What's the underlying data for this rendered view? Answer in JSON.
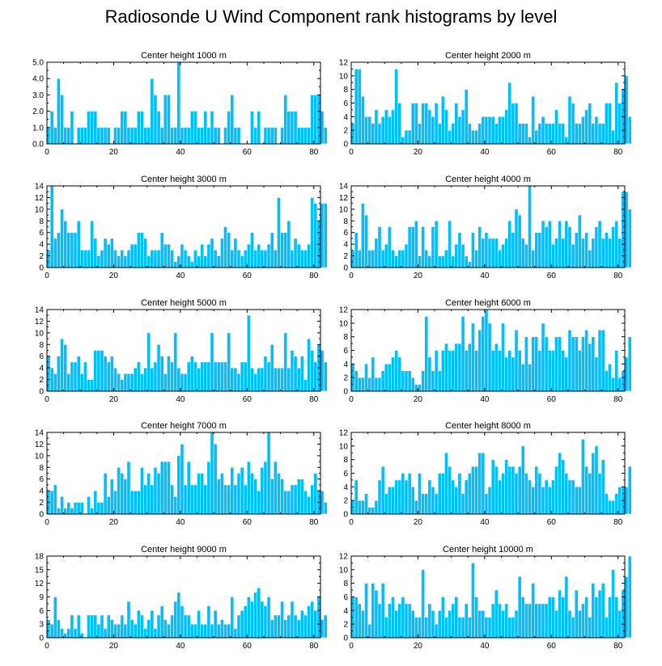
{
  "title": "Radiosonde U Wind Component rank histograms by level",
  "colors": {
    "bar": "#00bfff",
    "bar_edge": "#ffffff",
    "axis": "#000000"
  },
  "chart_data": [
    {
      "type": "bar",
      "title": "Center height 1000 m",
      "xlim": [
        0,
        82
      ],
      "ylim": [
        0,
        5
      ],
      "xticks": [
        0,
        20,
        40,
        60,
        80
      ],
      "yticks": [
        "0.0",
        "1.0",
        "2.0",
        "3.0",
        "4.0",
        "5.0"
      ],
      "values": [
        1,
        2,
        1,
        4,
        3,
        1,
        1,
        2,
        0,
        1,
        1,
        1,
        2,
        2,
        2,
        1,
        1,
        1,
        1,
        0,
        1,
        1,
        2,
        2,
        1,
        1,
        1,
        2,
        2,
        1,
        1,
        4,
        3,
        2,
        1,
        3,
        3,
        1,
        1,
        5,
        1,
        1,
        1,
        2,
        2,
        1,
        1,
        2,
        1,
        2,
        1,
        1,
        0,
        1,
        2,
        3,
        1,
        1,
        0,
        0,
        0,
        2,
        1,
        2,
        0,
        1,
        1,
        1,
        1,
        0,
        1,
        3,
        2,
        2,
        2,
        1,
        1,
        1,
        1,
        3,
        3,
        3,
        2,
        1
      ]
    },
    {
      "type": "bar",
      "title": "Center height 2000 m",
      "xlim": [
        0,
        82
      ],
      "ylim": [
        0,
        12
      ],
      "xticks": [
        0,
        20,
        40,
        60,
        80
      ],
      "yticks": [
        "0",
        "2",
        "4",
        "6",
        "8",
        "10",
        "12"
      ],
      "values": [
        3,
        11,
        11,
        7,
        4,
        4,
        3,
        5,
        3,
        4,
        5,
        4,
        5,
        11,
        6,
        1,
        2,
        2,
        6,
        6,
        3,
        6,
        6,
        5,
        4,
        6,
        3,
        7,
        5,
        2,
        3,
        6,
        4,
        5,
        8,
        3,
        2,
        2,
        3,
        4,
        4,
        4,
        4,
        3,
        4,
        4,
        5,
        9,
        6,
        6,
        3,
        3,
        3,
        1,
        7,
        2,
        3,
        4,
        3,
        3,
        3,
        5,
        3,
        3,
        1,
        7,
        6,
        3,
        3,
        4,
        5,
        6,
        3,
        4,
        3,
        3,
        6,
        6,
        2,
        9,
        6,
        8,
        10,
        4
      ]
    },
    {
      "type": "bar",
      "title": "Center height 3000 m",
      "xlim": [
        0,
        82
      ],
      "ylim": [
        0,
        14
      ],
      "xticks": [
        0,
        20,
        40,
        60,
        80
      ],
      "yticks": [
        "0",
        "2",
        "4",
        "6",
        "8",
        "10",
        "12",
        "14"
      ],
      "values": [
        3,
        14,
        5,
        6,
        10,
        8,
        6,
        6,
        6,
        8,
        3,
        3,
        3,
        8,
        5,
        2,
        3,
        5,
        4,
        5,
        3,
        2,
        3,
        2,
        3,
        4,
        4,
        6,
        6,
        5,
        2,
        3,
        3,
        3,
        6,
        4,
        4,
        3,
        1,
        2,
        4,
        3,
        2,
        1,
        3,
        2,
        4,
        2,
        4,
        5,
        3,
        2,
        5,
        7,
        6,
        3,
        5,
        3,
        2,
        3,
        4,
        6,
        3,
        4,
        3,
        3,
        4,
        6,
        3,
        12,
        6,
        6,
        8,
        3,
        5,
        4,
        3,
        3,
        4,
        12,
        11,
        8,
        11,
        11
      ]
    },
    {
      "type": "bar",
      "title": "Center height 4000 m",
      "xlim": [
        0,
        82
      ],
      "ylim": [
        0,
        14
      ],
      "xticks": [
        0,
        20,
        40,
        60,
        80
      ],
      "yticks": [
        "0",
        "2",
        "4",
        "6",
        "8",
        "10",
        "12",
        "14"
      ],
      "values": [
        3,
        6,
        3,
        11,
        9,
        3,
        3,
        5,
        7,
        3,
        4,
        7,
        3,
        2,
        3,
        3,
        4,
        7,
        7,
        8,
        2,
        7,
        3,
        2,
        7,
        8,
        2,
        2,
        3,
        8,
        2,
        4,
        6,
        4,
        2,
        1,
        6,
        3,
        7,
        5,
        6,
        5,
        5,
        5,
        3,
        4,
        5,
        8,
        6,
        10,
        9,
        5,
        4,
        14,
        3,
        6,
        6,
        8,
        7,
        8,
        4,
        5,
        8,
        5,
        8,
        7,
        4,
        6,
        9,
        5,
        6,
        3,
        5,
        7,
        8,
        5,
        6,
        5,
        7,
        8,
        5,
        13,
        13,
        10
      ]
    },
    {
      "type": "bar",
      "title": "Center height 5000 m",
      "xlim": [
        0,
        82
      ],
      "ylim": [
        0,
        14
      ],
      "xticks": [
        0,
        20,
        40,
        60,
        80
      ],
      "yticks": [
        "0",
        "2",
        "4",
        "6",
        "8",
        "10",
        "12",
        "14"
      ],
      "values": [
        6,
        4,
        3,
        6,
        9,
        8,
        3,
        5,
        5,
        6,
        3,
        5,
        2,
        2,
        7,
        7,
        7,
        6,
        5,
        6,
        4,
        3,
        2,
        3,
        3,
        3,
        4,
        5,
        3,
        4,
        10,
        4,
        5,
        8,
        6,
        3,
        6,
        5,
        10,
        4,
        3,
        3,
        5,
        6,
        5,
        4,
        5,
        5,
        5,
        10,
        5,
        5,
        5,
        5,
        10,
        4,
        4,
        3,
        5,
        5,
        13,
        4,
        3,
        4,
        4,
        6,
        5,
        8,
        4,
        4,
        4,
        10,
        4,
        7,
        6,
        4,
        6,
        2,
        9,
        7,
        5,
        8,
        7,
        5
      ]
    },
    {
      "type": "bar",
      "title": "Center height 6000 m",
      "xlim": [
        0,
        82
      ],
      "ylim": [
        0,
        12
      ],
      "xticks": [
        0,
        20,
        40,
        60,
        80
      ],
      "yticks": [
        "0",
        "2",
        "4",
        "6",
        "8",
        "10",
        "12"
      ],
      "values": [
        4,
        3,
        2,
        2,
        4,
        2,
        5,
        2,
        2,
        3,
        4,
        4,
        5,
        6,
        5,
        3,
        3,
        3,
        2,
        1,
        1,
        3,
        11,
        5,
        3,
        6,
        3,
        6,
        7,
        6,
        6,
        7,
        7,
        11,
        6,
        7,
        10,
        6,
        9,
        11,
        12,
        10,
        6,
        7,
        6,
        10,
        5,
        6,
        5,
        9,
        6,
        4,
        8,
        4,
        8,
        8,
        6,
        10,
        8,
        6,
        6,
        8,
        8,
        6,
        5,
        9,
        8,
        8,
        6,
        8,
        9,
        7,
        8,
        5,
        9,
        9,
        3,
        4,
        2,
        6,
        2,
        3,
        5,
        8
      ]
    },
    {
      "type": "bar",
      "title": "Center height 7000 m",
      "xlim": [
        0,
        82
      ],
      "ylim": [
        0,
        14
      ],
      "xticks": [
        0,
        20,
        40,
        60,
        80
      ],
      "yticks": [
        "0",
        "2",
        "4",
        "6",
        "8",
        "10",
        "12",
        "14"
      ],
      "values": [
        4,
        4,
        5,
        1,
        3,
        1,
        2,
        1,
        2,
        2,
        2,
        0,
        3,
        1,
        4,
        2,
        2,
        7,
        3,
        6,
        4,
        8,
        7,
        6,
        9,
        4,
        4,
        4,
        8,
        5,
        7,
        5,
        8,
        7,
        9,
        9,
        9,
        5,
        3,
        10,
        12,
        5,
        9,
        5,
        5,
        7,
        7,
        5,
        9,
        14,
        12,
        6,
        7,
        5,
        5,
        8,
        5,
        7,
        8,
        5,
        9,
        7,
        6,
        4,
        8,
        9,
        14,
        6,
        9,
        7,
        6,
        4,
        4,
        5,
        5,
        6,
        6,
        4,
        3,
        5,
        7,
        4,
        4,
        2
      ]
    },
    {
      "type": "bar",
      "title": "Center height 8000 m",
      "xlim": [
        0,
        82
      ],
      "ylim": [
        0,
        12
      ],
      "xticks": [
        0,
        20,
        40,
        60,
        80
      ],
      "yticks": [
        "0",
        "2",
        "4",
        "6",
        "8",
        "10",
        "12"
      ],
      "values": [
        2,
        5,
        2,
        2,
        3,
        1,
        1,
        2,
        5,
        7,
        3,
        4,
        4,
        5,
        5,
        6,
        5,
        6,
        4,
        2,
        6,
        3,
        3,
        5,
        4,
        3,
        6,
        6,
        9,
        7,
        5,
        4,
        6,
        3,
        5,
        6,
        7,
        7,
        9,
        9,
        3,
        4,
        8,
        7,
        5,
        6,
        8,
        7,
        7,
        6,
        7,
        10,
        6,
        5,
        4,
        7,
        6,
        4,
        5,
        4,
        5,
        7,
        9,
        8,
        6,
        5,
        5,
        4,
        4,
        11,
        7,
        6,
        9,
        10,
        6,
        8,
        3,
        2,
        2,
        3,
        4,
        4,
        4,
        7
      ]
    },
    {
      "type": "bar",
      "title": "Center height 9000 m",
      "xlim": [
        0,
        82
      ],
      "ylim": [
        0,
        18
      ],
      "xticks": [
        0,
        20,
        40,
        60,
        80
      ],
      "yticks": [
        "0",
        "3",
        "6",
        "9",
        "12",
        "15",
        "18"
      ],
      "values": [
        4,
        3,
        9,
        4,
        2,
        1,
        2,
        5,
        2,
        5,
        1,
        0,
        5,
        5,
        5,
        3,
        5,
        2,
        5,
        4,
        3,
        3,
        5,
        3,
        8,
        4,
        3,
        6,
        5,
        2,
        4,
        6,
        2,
        5,
        7,
        4,
        3,
        5,
        8,
        10,
        7,
        5,
        5,
        3,
        3,
        6,
        3,
        3,
        7,
        3,
        6,
        3,
        4,
        3,
        3,
        9,
        2,
        5,
        6,
        7,
        9,
        8,
        10,
        11,
        8,
        7,
        9,
        4,
        5,
        5,
        8,
        4,
        5,
        8,
        5,
        4,
        6,
        5,
        7,
        8,
        6,
        9,
        4,
        5
      ]
    },
    {
      "type": "bar",
      "title": "Center height 10000 m",
      "xlim": [
        0,
        82
      ],
      "ylim": [
        0,
        12
      ],
      "xticks": [
        0,
        20,
        40,
        60,
        80
      ],
      "yticks": [
        "0",
        "2",
        "4",
        "6",
        "8",
        "10",
        "12"
      ],
      "values": [
        6,
        6,
        5,
        4,
        8,
        2,
        8,
        7,
        5,
        8,
        3,
        5,
        6,
        4,
        5,
        6,
        5,
        5,
        4,
        3,
        3,
        10,
        3,
        5,
        4,
        2,
        4,
        6,
        3,
        4,
        5,
        6,
        3,
        3,
        5,
        3,
        11,
        6,
        4,
        4,
        3,
        3,
        5,
        7,
        5,
        4,
        5,
        3,
        3,
        4,
        9,
        6,
        5,
        5,
        8,
        5,
        5,
        5,
        5,
        6,
        6,
        4,
        7,
        6,
        9,
        4,
        3,
        7,
        4,
        5,
        6,
        3,
        8,
        6,
        7,
        8,
        3,
        6,
        10,
        6,
        4,
        7,
        9,
        12
      ]
    }
  ]
}
